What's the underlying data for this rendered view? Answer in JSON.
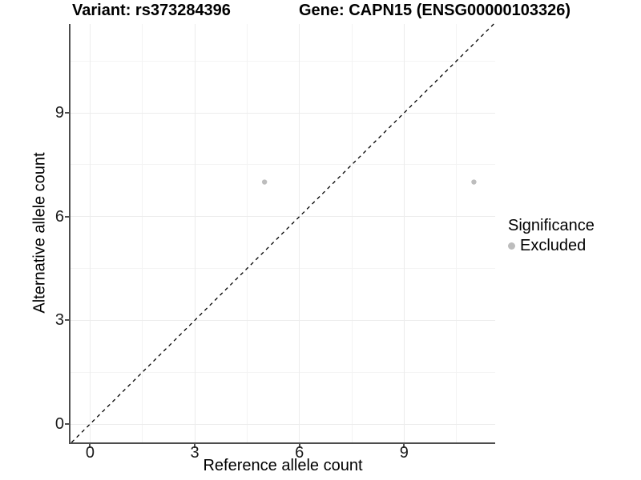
{
  "figure": {
    "title_variant": "Variant: rs373284396",
    "title_gene": "Gene: CAPN15 (ENSG00000103326)"
  },
  "axes": {
    "x_label": "Reference allele count",
    "y_label": "Alternative allele count"
  },
  "legend": {
    "title": "Significance",
    "items": [
      {
        "label": "Excluded",
        "color": "#bdbdbd",
        "marker": "dot-icon"
      }
    ]
  },
  "colors": {
    "axis_line": "#4d4d4d",
    "grid_major": "#ececec",
    "grid_minor": "#f3f3f3",
    "point": "#bdbdbd",
    "reference_line": "#000000",
    "text": "#000000"
  },
  "chart_data": {
    "type": "scatter",
    "title": "Variant: rs373284396   Gene: CAPN15 (ENSG00000103326)",
    "xlabel": "Reference allele count",
    "ylabel": "Alternative allele count",
    "xlim": [
      -0.56,
      11.61
    ],
    "ylim": [
      -0.53,
      11.57
    ],
    "xticks": [
      0,
      3,
      6,
      9
    ],
    "yticks": [
      0,
      3,
      6,
      9
    ],
    "minor_gridlines_x": [
      1.5,
      4.5,
      7.5,
      10.5
    ],
    "minor_gridlines_y": [
      1.5,
      4.5,
      7.5,
      10.5
    ],
    "grid": true,
    "legend_position": "right",
    "series": [
      {
        "name": "Excluded",
        "color": "#bdbdbd",
        "points": [
          {
            "x": 5,
            "y": 7
          },
          {
            "x": 11,
            "y": 7
          }
        ]
      }
    ],
    "reference_line": {
      "kind": "identity y=x",
      "style": "dashed",
      "color": "#000000",
      "dash": [
        4.5,
        4.5
      ]
    }
  }
}
